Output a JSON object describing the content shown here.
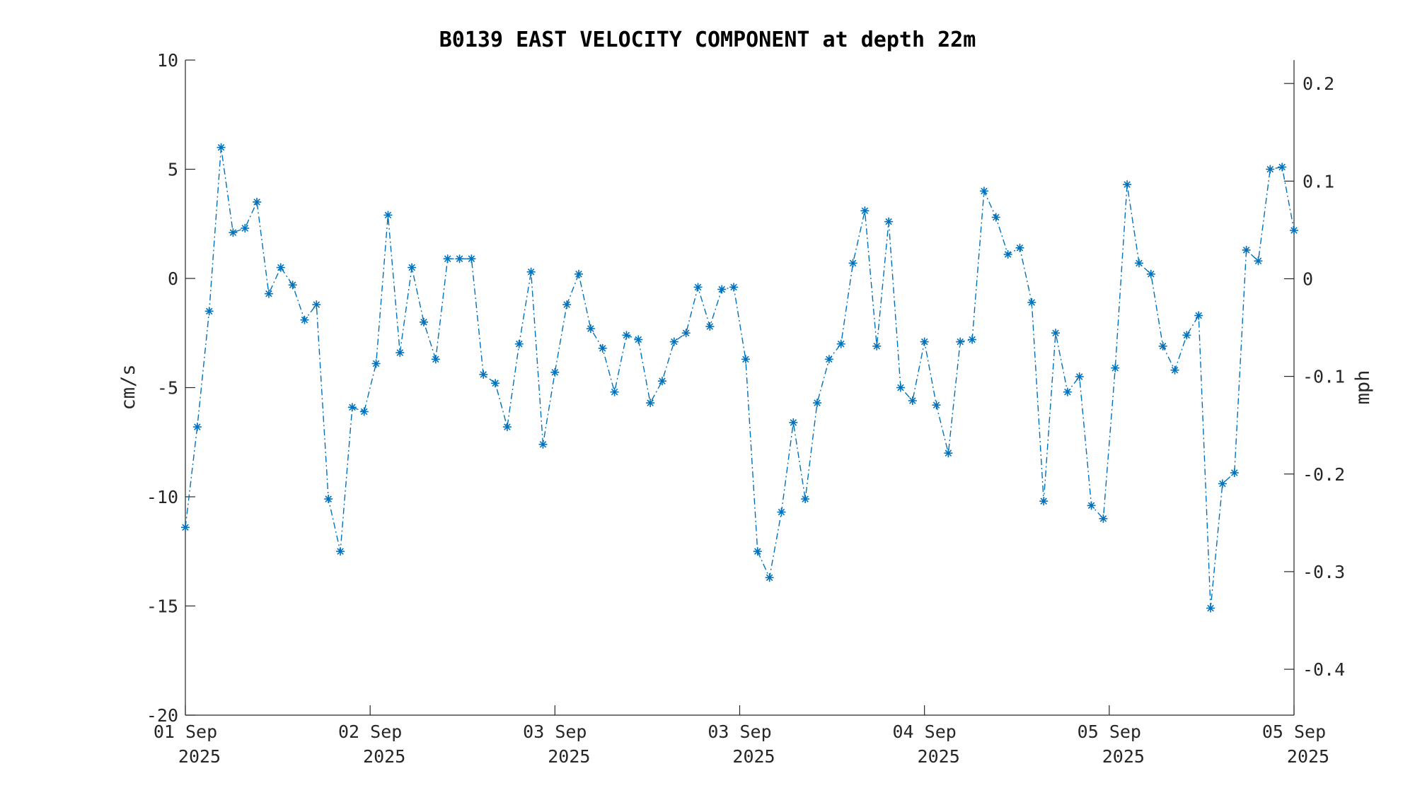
{
  "chart_data": {
    "type": "line",
    "title": "B0139 EAST VELOCITY COMPONENT at depth 22m",
    "ylabel": "cm/s",
    "y2label": "mph",
    "ylim": [
      -20,
      10
    ],
    "y2lim": [
      -0.447,
      0.224
    ],
    "yticks": [
      "10",
      "5",
      "0",
      "-5",
      "-10",
      "-15",
      "-20"
    ],
    "y2ticks": [
      "0.2",
      "0.1",
      "0",
      "-0.1",
      "-0.2",
      "-0.3",
      "-0.4"
    ],
    "xticks": [
      {
        "line1": "01 Sep",
        "line2": "2025"
      },
      {
        "line1": "02 Sep",
        "line2": "2025"
      },
      {
        "line1": "03 Sep",
        "line2": "2025"
      },
      {
        "line1": "03 Sep",
        "line2": "2025"
      },
      {
        "line1": "04 Sep",
        "line2": "2025"
      },
      {
        "line1": "05 Sep",
        "line2": "2025"
      },
      {
        "line1": "05 Sep",
        "line2": "2025"
      }
    ],
    "grid": false,
    "marker": "asterisk",
    "line_style": "dash-dot",
    "color": "#0072BD",
    "series": [
      {
        "values": [
          -11.4,
          -6.8,
          -1.5,
          6.0,
          2.1,
          2.3,
          3.5,
          -0.7,
          0.5,
          -0.3,
          -1.9,
          -1.2,
          -10.1,
          -12.5,
          -5.9,
          -6.1,
          -3.9,
          2.9,
          -3.4,
          0.5,
          -2.0,
          -3.7,
          0.9,
          0.9,
          0.9,
          -4.4,
          -4.8,
          -6.8,
          -3.0,
          0.3,
          -7.6,
          -4.3,
          -1.2,
          0.2,
          -2.3,
          -3.2,
          -5.2,
          -2.6,
          -2.8,
          -5.7,
          -4.7,
          -2.9,
          -2.5,
          -0.4,
          -2.2,
          -0.5,
          -0.4,
          -3.7,
          -12.5,
          -13.7,
          -10.7,
          -6.6,
          -10.1,
          -5.7,
          -3.7,
          -3.0,
          0.7,
          3.1,
          -3.1,
          2.6,
          -5.0,
          -5.6,
          -2.9,
          -5.8,
          -8.0,
          -2.9,
          -2.8,
          4.0,
          2.8,
          1.1,
          1.4,
          -1.1,
          -10.2,
          -2.5,
          -5.2,
          -4.5,
          -10.4,
          -11.0,
          -4.1,
          4.3,
          0.7,
          0.2,
          -3.1,
          -4.2,
          -2.6,
          -1.7,
          -15.1,
          -9.4,
          -8.9,
          1.3,
          0.8,
          5.0,
          5.1,
          2.2
        ]
      }
    ]
  }
}
